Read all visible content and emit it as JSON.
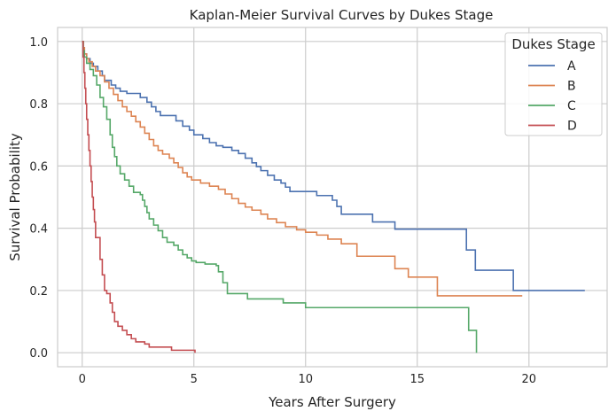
{
  "chart_data": {
    "type": "line",
    "step": true,
    "title": "Kaplan-Meier Survival Curves by Dukes Stage",
    "xlabel": "Years After Surgery",
    "ylabel": "Survival Probability",
    "xlim": [
      -1.1,
      23.5
    ],
    "ylim": [
      -0.045,
      1.045
    ],
    "xticks": [
      0,
      5,
      10,
      15,
      20
    ],
    "xtick_labels": [
      "0",
      "5",
      "10",
      "15",
      "20"
    ],
    "yticks": [
      0.0,
      0.2,
      0.4,
      0.6,
      0.8,
      1.0
    ],
    "ytick_labels": [
      "0.0",
      "0.2",
      "0.4",
      "0.6",
      "0.8",
      "1.0"
    ],
    "grid": true,
    "legend": {
      "title": "Dukes Stage",
      "position": "top-right"
    },
    "series": [
      {
        "name": "A",
        "color": "#4c72b0",
        "points": [
          [
            0,
            1.0
          ],
          [
            0.05,
            0.98
          ],
          [
            0.1,
            0.96
          ],
          [
            0.2,
            0.945
          ],
          [
            0.35,
            0.93
          ],
          [
            0.5,
            0.92
          ],
          [
            0.7,
            0.905
          ],
          [
            0.9,
            0.89
          ],
          [
            1.0,
            0.875
          ],
          [
            1.3,
            0.86
          ],
          [
            1.5,
            0.85
          ],
          [
            1.7,
            0.84
          ],
          [
            2.0,
            0.833
          ],
          [
            2.3,
            0.833
          ],
          [
            2.6,
            0.82
          ],
          [
            2.9,
            0.805
          ],
          [
            3.1,
            0.79
          ],
          [
            3.3,
            0.775
          ],
          [
            3.5,
            0.762
          ],
          [
            3.9,
            0.762
          ],
          [
            4.2,
            0.745
          ],
          [
            4.5,
            0.728
          ],
          [
            4.8,
            0.715
          ],
          [
            5.0,
            0.7
          ],
          [
            5.4,
            0.688
          ],
          [
            5.7,
            0.675
          ],
          [
            6.0,
            0.665
          ],
          [
            6.3,
            0.66
          ],
          [
            6.7,
            0.65
          ],
          [
            7.0,
            0.64
          ],
          [
            7.3,
            0.625
          ],
          [
            7.6,
            0.61
          ],
          [
            7.8,
            0.598
          ],
          [
            8.0,
            0.585
          ],
          [
            8.3,
            0.57
          ],
          [
            8.6,
            0.555
          ],
          [
            8.9,
            0.545
          ],
          [
            9.1,
            0.532
          ],
          [
            9.3,
            0.518
          ],
          [
            10.5,
            0.505
          ],
          [
            11.2,
            0.49
          ],
          [
            11.4,
            0.47
          ],
          [
            11.6,
            0.445
          ],
          [
            13.0,
            0.42
          ],
          [
            14.0,
            0.397
          ],
          [
            17.2,
            0.33
          ],
          [
            17.6,
            0.265
          ],
          [
            19.3,
            0.2
          ],
          [
            22.5,
            0.2
          ]
        ]
      },
      {
        "name": "B",
        "color": "#dd8452",
        "points": [
          [
            0,
            1.0
          ],
          [
            0.05,
            0.98
          ],
          [
            0.1,
            0.96
          ],
          [
            0.2,
            0.945
          ],
          [
            0.3,
            0.935
          ],
          [
            0.45,
            0.92
          ],
          [
            0.6,
            0.905
          ],
          [
            0.8,
            0.89
          ],
          [
            1.0,
            0.87
          ],
          [
            1.2,
            0.85
          ],
          [
            1.4,
            0.83
          ],
          [
            1.6,
            0.81
          ],
          [
            1.8,
            0.79
          ],
          [
            2.0,
            0.775
          ],
          [
            2.2,
            0.76
          ],
          [
            2.4,
            0.742
          ],
          [
            2.6,
            0.725
          ],
          [
            2.8,
            0.705
          ],
          [
            3.0,
            0.685
          ],
          [
            3.2,
            0.665
          ],
          [
            3.4,
            0.65
          ],
          [
            3.6,
            0.638
          ],
          [
            3.9,
            0.625
          ],
          [
            4.1,
            0.61
          ],
          [
            4.3,
            0.595
          ],
          [
            4.5,
            0.578
          ],
          [
            4.7,
            0.565
          ],
          [
            4.9,
            0.555
          ],
          [
            5.3,
            0.545
          ],
          [
            5.7,
            0.535
          ],
          [
            6.1,
            0.525
          ],
          [
            6.4,
            0.51
          ],
          [
            6.7,
            0.495
          ],
          [
            7.0,
            0.48
          ],
          [
            7.3,
            0.468
          ],
          [
            7.6,
            0.458
          ],
          [
            8.0,
            0.445
          ],
          [
            8.3,
            0.43
          ],
          [
            8.7,
            0.418
          ],
          [
            9.1,
            0.405
          ],
          [
            9.6,
            0.395
          ],
          [
            10.0,
            0.387
          ],
          [
            10.5,
            0.378
          ],
          [
            11.0,
            0.365
          ],
          [
            11.6,
            0.35
          ],
          [
            12.0,
            0.35
          ],
          [
            12.3,
            0.31
          ],
          [
            13.9,
            0.31
          ],
          [
            14.0,
            0.27
          ],
          [
            14.5,
            0.27
          ],
          [
            14.6,
            0.243
          ],
          [
            15.8,
            0.243
          ],
          [
            15.9,
            0.183
          ],
          [
            19.7,
            0.183
          ]
        ]
      },
      {
        "name": "C",
        "color": "#55a868",
        "points": [
          [
            0,
            1.0
          ],
          [
            0.05,
            0.97
          ],
          [
            0.1,
            0.95
          ],
          [
            0.2,
            0.93
          ],
          [
            0.35,
            0.91
          ],
          [
            0.5,
            0.89
          ],
          [
            0.65,
            0.86
          ],
          [
            0.8,
            0.82
          ],
          [
            0.95,
            0.79
          ],
          [
            1.1,
            0.75
          ],
          [
            1.25,
            0.7
          ],
          [
            1.35,
            0.66
          ],
          [
            1.45,
            0.63
          ],
          [
            1.55,
            0.6
          ],
          [
            1.7,
            0.575
          ],
          [
            1.9,
            0.555
          ],
          [
            2.1,
            0.535
          ],
          [
            2.3,
            0.515
          ],
          [
            2.6,
            0.508
          ],
          [
            2.7,
            0.49
          ],
          [
            2.8,
            0.47
          ],
          [
            2.9,
            0.45
          ],
          [
            3.0,
            0.43
          ],
          [
            3.2,
            0.41
          ],
          [
            3.4,
            0.392
          ],
          [
            3.6,
            0.37
          ],
          [
            3.8,
            0.355
          ],
          [
            4.1,
            0.345
          ],
          [
            4.3,
            0.33
          ],
          [
            4.5,
            0.315
          ],
          [
            4.7,
            0.305
          ],
          [
            4.9,
            0.295
          ],
          [
            5.1,
            0.29
          ],
          [
            5.5,
            0.285
          ],
          [
            6.0,
            0.28
          ],
          [
            6.1,
            0.26
          ],
          [
            6.3,
            0.225
          ],
          [
            6.5,
            0.19
          ],
          [
            7.3,
            0.19
          ],
          [
            7.4,
            0.173
          ],
          [
            8.9,
            0.173
          ],
          [
            9.0,
            0.16
          ],
          [
            9.9,
            0.16
          ],
          [
            10.0,
            0.145
          ],
          [
            17.2,
            0.145
          ],
          [
            17.3,
            0.072
          ],
          [
            17.6,
            0.072
          ],
          [
            17.65,
            0.0
          ]
        ]
      },
      {
        "name": "D",
        "color": "#c44e52",
        "points": [
          [
            0,
            1.0
          ],
          [
            0.04,
            0.95
          ],
          [
            0.08,
            0.9
          ],
          [
            0.12,
            0.85
          ],
          [
            0.16,
            0.8
          ],
          [
            0.2,
            0.75
          ],
          [
            0.25,
            0.7
          ],
          [
            0.3,
            0.65
          ],
          [
            0.35,
            0.6
          ],
          [
            0.4,
            0.55
          ],
          [
            0.45,
            0.5
          ],
          [
            0.5,
            0.46
          ],
          [
            0.55,
            0.42
          ],
          [
            0.6,
            0.37
          ],
          [
            0.75,
            0.37
          ],
          [
            0.8,
            0.3
          ],
          [
            0.9,
            0.25
          ],
          [
            1.0,
            0.2
          ],
          [
            1.1,
            0.19
          ],
          [
            1.25,
            0.16
          ],
          [
            1.35,
            0.13
          ],
          [
            1.45,
            0.1
          ],
          [
            1.6,
            0.085
          ],
          [
            1.8,
            0.072
          ],
          [
            2.0,
            0.058
          ],
          [
            2.2,
            0.045
          ],
          [
            2.4,
            0.035
          ],
          [
            2.8,
            0.028
          ],
          [
            3.0,
            0.018
          ],
          [
            3.8,
            0.018
          ],
          [
            4.0,
            0.008
          ],
          [
            5.0,
            0.008
          ],
          [
            5.05,
            0.0
          ]
        ]
      }
    ]
  }
}
